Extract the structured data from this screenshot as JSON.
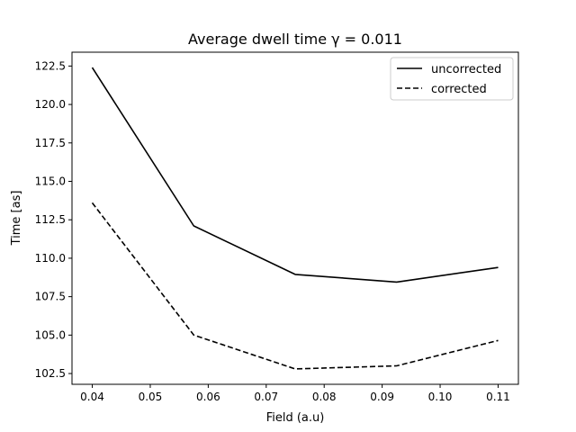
{
  "chart_data": {
    "type": "line",
    "title": "Average dwell time γ = 0.011",
    "xlabel": "Field (a.u)",
    "ylabel": "Time [as]",
    "xlim": [
      0.0365,
      0.1135
    ],
    "ylim": [
      101.8,
      123.4
    ],
    "grid": false,
    "legend_position": "top-right",
    "x_ticks": [
      0.04,
      0.05,
      0.06,
      0.07,
      0.08,
      0.09,
      0.1,
      0.11
    ],
    "x_tick_labels": [
      "0.04",
      "0.05",
      "0.06",
      "0.07",
      "0.08",
      "0.09",
      "0.10",
      "0.11"
    ],
    "y_ticks": [
      102.5,
      105.0,
      107.5,
      110.0,
      112.5,
      115.0,
      117.5,
      120.0,
      122.5
    ],
    "y_tick_labels": [
      "102.5",
      "105.0",
      "107.5",
      "110.0",
      "112.5",
      "115.0",
      "117.5",
      "120.0",
      "122.5"
    ],
    "x": [
      0.04,
      0.0575,
      0.075,
      0.0925,
      0.11
    ],
    "series": [
      {
        "name": "uncorrected",
        "values": [
          122.4,
          112.1,
          108.95,
          108.45,
          109.4
        ],
        "dash": "solid",
        "color": "#000000"
      },
      {
        "name": "corrected",
        "values": [
          113.6,
          105.0,
          102.8,
          103.0,
          104.65
        ],
        "dash": "dashed",
        "color": "#000000"
      }
    ]
  }
}
